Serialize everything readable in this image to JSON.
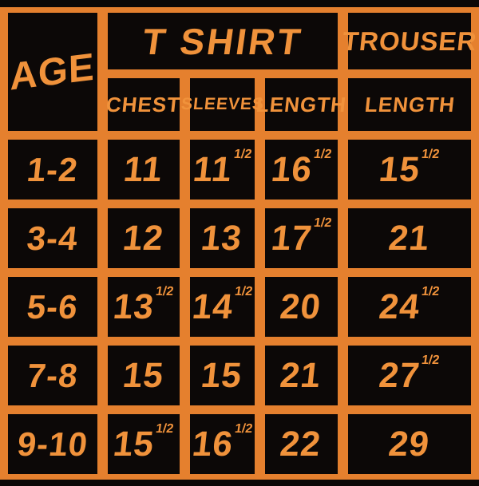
{
  "colors": {
    "background_orange": "#E5802E",
    "cell_black": "#0C0807",
    "text_orange": "#F0923B",
    "strip_black": "#0B0706"
  },
  "header": {
    "age": "AGE",
    "tshirt_group": "T SHIRT",
    "trouser_group": "TROUSER",
    "chest": "CHEST",
    "sleeves": "SLEEVES",
    "length": "LENGTH",
    "trouser_length": "LENGTH"
  },
  "grid": {
    "rows": [
      {
        "age": "1-2",
        "chest": {
          "v": "11",
          "sup": ""
        },
        "sleeves": {
          "v": "11",
          "sup": "1/2"
        },
        "length": {
          "v": "16",
          "sup": "1/2"
        },
        "trouser": {
          "v": "15",
          "sup": "1/2"
        }
      },
      {
        "age": "3-4",
        "chest": {
          "v": "12",
          "sup": ""
        },
        "sleeves": {
          "v": "13",
          "sup": ""
        },
        "length": {
          "v": "17",
          "sup": "1/2"
        },
        "trouser": {
          "v": "21",
          "sup": ""
        }
      },
      {
        "age": "5-6",
        "chest": {
          "v": "13",
          "sup": "1/2"
        },
        "sleeves": {
          "v": "14",
          "sup": "1/2"
        },
        "length": {
          "v": "20",
          "sup": ""
        },
        "trouser": {
          "v": "24",
          "sup": "1/2"
        }
      },
      {
        "age": "7-8",
        "chest": {
          "v": "15",
          "sup": ""
        },
        "sleeves": {
          "v": "15",
          "sup": ""
        },
        "length": {
          "v": "21",
          "sup": ""
        },
        "trouser": {
          "v": "27",
          "sup": "1/2"
        }
      },
      {
        "age": "9-10",
        "chest": {
          "v": "15",
          "sup": "1/2"
        },
        "sleeves": {
          "v": "16",
          "sup": "1/2"
        },
        "length": {
          "v": "22",
          "sup": ""
        },
        "trouser": {
          "v": "29",
          "sup": ""
        }
      }
    ]
  },
  "chart_data": {
    "type": "table",
    "column_groups": [
      {
        "label": "T SHIRT",
        "columns": [
          "CHEST",
          "SLEEVES",
          "LENGTH"
        ]
      },
      {
        "label": "TROUSER",
        "columns": [
          "LENGTH"
        ]
      }
    ],
    "columns": [
      "AGE",
      "CHEST",
      "SLEEVES",
      "LENGTH",
      "TROUSER LENGTH"
    ],
    "rows": [
      [
        "1-2",
        11,
        11.5,
        16.5,
        15.5
      ],
      [
        "3-4",
        12,
        13,
        17.5,
        21
      ],
      [
        "5-6",
        13.5,
        14.5,
        20,
        24.5
      ],
      [
        "7-8",
        15,
        15,
        21,
        27.5
      ],
      [
        "9-10",
        15.5,
        16.5,
        22,
        29
      ]
    ]
  }
}
